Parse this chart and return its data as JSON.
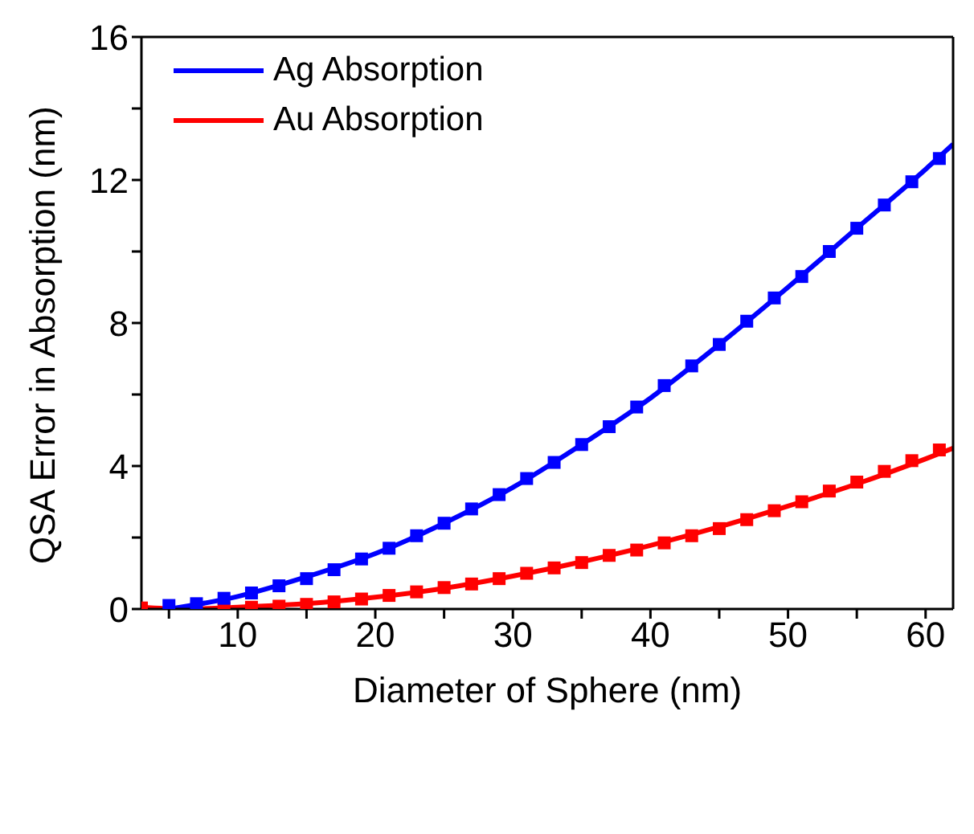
{
  "chart_data": {
    "type": "scatter",
    "xlabel": "Diameter of Sphere (nm)",
    "ylabel": "QSA Error in Absorption (nm)",
    "xlim": [
      3,
      62
    ],
    "xticks": [
      {
        "value": 5,
        "label": null
      },
      10,
      {
        "value": 15,
        "label": null
      },
      20,
      {
        "value": 25,
        "label": null
      },
      30,
      {
        "value": 35,
        "label": null
      },
      40,
      {
        "value": 45,
        "label": null
      },
      50,
      {
        "value": 55,
        "label": null
      },
      60
    ],
    "ylim": [
      0,
      16
    ],
    "yticks": [
      0,
      {
        "value": 2,
        "label": null
      },
      4,
      {
        "value": 6,
        "label": null
      },
      8,
      {
        "value": 10,
        "label": null
      },
      12,
      {
        "value": 14,
        "label": null
      },
      16
    ],
    "grid": false,
    "legend": "top left",
    "series": [
      {
        "marker": "square",
        "color": "#0000ff",
        "x": [
          5,
          7,
          9,
          11,
          13,
          15,
          17,
          19,
          21,
          23,
          25,
          27,
          29,
          31,
          33,
          35,
          37,
          39,
          41,
          43,
          45,
          47,
          49,
          51,
          53,
          55,
          57,
          59,
          61
        ],
        "values": [
          0.1,
          0.15,
          0.3,
          0.45,
          0.65,
          0.85,
          1.1,
          1.4,
          1.7,
          2.05,
          2.4,
          2.8,
          3.2,
          3.65,
          4.1,
          4.6,
          5.1,
          5.65,
          6.25,
          6.8,
          7.4,
          8.05,
          8.7,
          9.3,
          10.0,
          10.65,
          11.3,
          11.95,
          12.6
        ]
      },
      {
        "marker": "square",
        "color": "#ff0000",
        "x": [
          3,
          5,
          7,
          9,
          11,
          13,
          15,
          17,
          19,
          21,
          23,
          25,
          27,
          29,
          31,
          33,
          35,
          37,
          39,
          41,
          43,
          45,
          47,
          49,
          51,
          53,
          55,
          57,
          59,
          61
        ],
        "values": [
          0.03,
          null,
          null,
          0.03,
          0.05,
          0.08,
          0.13,
          0.2,
          0.28,
          0.38,
          0.48,
          0.6,
          0.7,
          0.85,
          1.0,
          1.15,
          1.3,
          1.5,
          1.65,
          1.85,
          2.05,
          2.25,
          2.5,
          2.75,
          3.0,
          3.3,
          3.55,
          3.85,
          4.15,
          4.45
        ]
      },
      {
        "type": "line",
        "marker": "none",
        "name": "Ag Absorption",
        "color": "#0000ff",
        "x": [
          5,
          10,
          15,
          20,
          25,
          30,
          35,
          40,
          45,
          50,
          55,
          60,
          62
        ],
        "values": [
          0,
          0.35,
          0.9,
          1.55,
          2.4,
          3.4,
          4.6,
          5.9,
          7.4,
          9.0,
          10.65,
          12.3,
          13.0
        ]
      },
      {
        "type": "line",
        "marker": "none",
        "name": "Au Absorption",
        "color": "#ff0000",
        "x": [
          3,
          6,
          10,
          15,
          20,
          25,
          30,
          35,
          40,
          45,
          50,
          55,
          60,
          62
        ],
        "values": [
          0.05,
          0,
          0.05,
          0.15,
          0.33,
          0.58,
          0.92,
          1.32,
          1.78,
          2.3,
          2.88,
          3.5,
          4.2,
          4.5
        ]
      }
    ]
  }
}
